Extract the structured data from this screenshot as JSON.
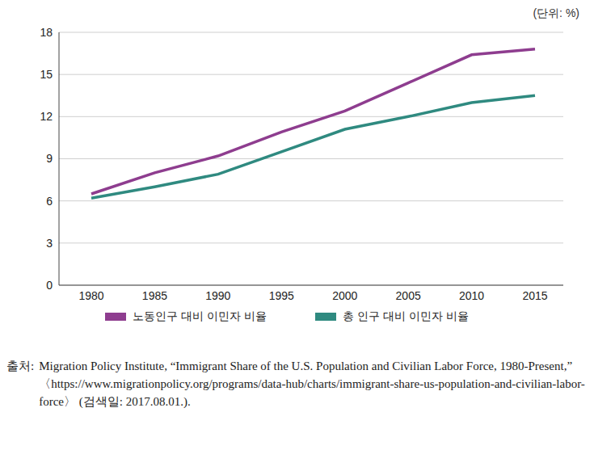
{
  "chart_data": {
    "type": "line",
    "unit": "(단위: %)",
    "x": [
      1980,
      1985,
      1990,
      1995,
      2000,
      2005,
      2010,
      2015
    ],
    "series": [
      {
        "name": "노동인구 대비 이민자 비율",
        "color": "#8e3d8f",
        "values": [
          6.5,
          8.0,
          9.2,
          10.9,
          12.4,
          14.4,
          16.4,
          16.8
        ]
      },
      {
        "name": "총 인구 대비 이민자 비율",
        "color": "#2f8a80",
        "values": [
          6.2,
          7.0,
          7.9,
          9.5,
          11.1,
          12.0,
          13.0,
          13.5
        ]
      }
    ],
    "ylim": [
      0,
      18
    ],
    "yticks": [
      0,
      3,
      6,
      9,
      12,
      15,
      18
    ],
    "grid": true,
    "legend": "bottom",
    "source_label": "출처:",
    "source": "Migration Policy Institute, “Immigrant Share of the U.S. Population and Civilian Labor Force, 1980-Present,” 〈https://www.migrationpolicy.org/programs/data-hub/charts/immigrant-share-us-population-and-civilian-labor-force〉 (검색일: 2017.08.01.)."
  }
}
